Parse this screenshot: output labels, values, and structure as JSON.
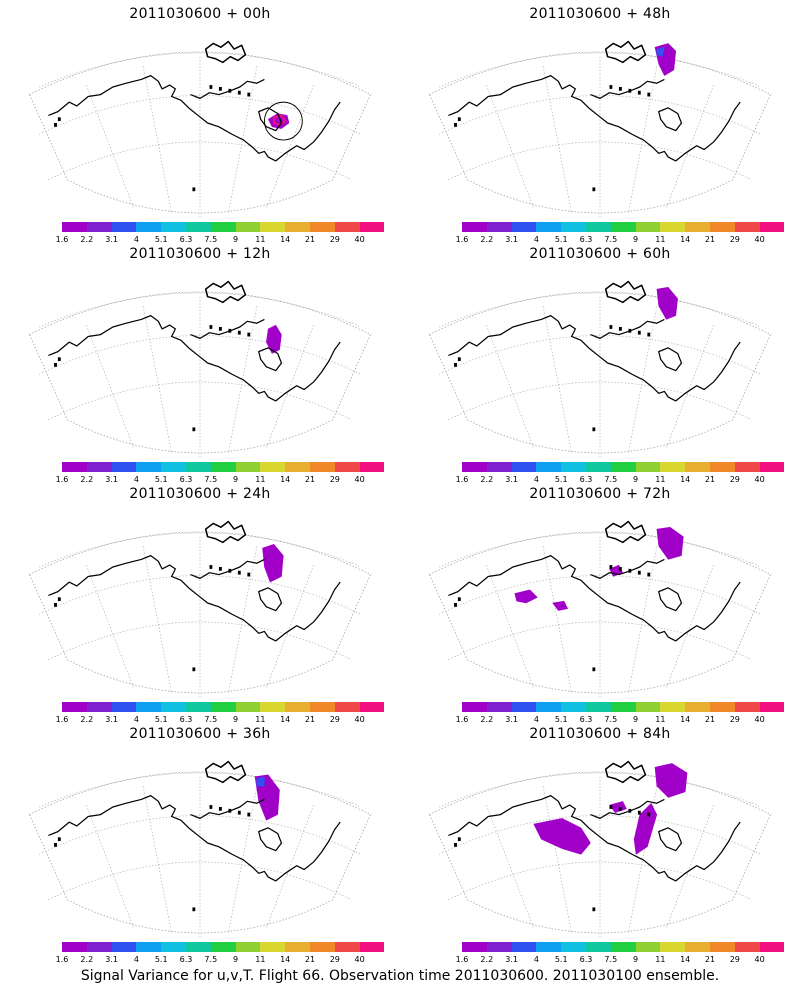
{
  "panels": [
    {
      "title": "2011030600 + 00h",
      "blobs": "p00"
    },
    {
      "title": "2011030600 + 48h",
      "blobs": "p48"
    },
    {
      "title": "2011030600 + 12h",
      "blobs": "p12"
    },
    {
      "title": "2011030600 + 60h",
      "blobs": "p60"
    },
    {
      "title": "2011030600 + 24h",
      "blobs": "p24"
    },
    {
      "title": "2011030600 + 72h",
      "blobs": "p72"
    },
    {
      "title": "2011030600 + 36h",
      "blobs": "p36"
    },
    {
      "title": "2011030600 + 84h",
      "blobs": "p84"
    }
  ],
  "colorbar": {
    "labels": [
      "1.6",
      "2.2",
      "3.1",
      "4",
      "5.1",
      "6.3",
      "7.5",
      "9",
      "11",
      "14",
      "21",
      "29",
      "40"
    ],
    "colors": [
      "#a000c8",
      "#8020d0",
      "#3050f0",
      "#10a0f0",
      "#10c0e0",
      "#10c8a0",
      "#20d040",
      "#90d030",
      "#d8d830",
      "#e8b030",
      "#f08828",
      "#f04848",
      "#f01080"
    ]
  },
  "caption": "Signal Variance for u,v,T. Flight 66. Observation time 2011030600. 2011030100 ensemble."
}
